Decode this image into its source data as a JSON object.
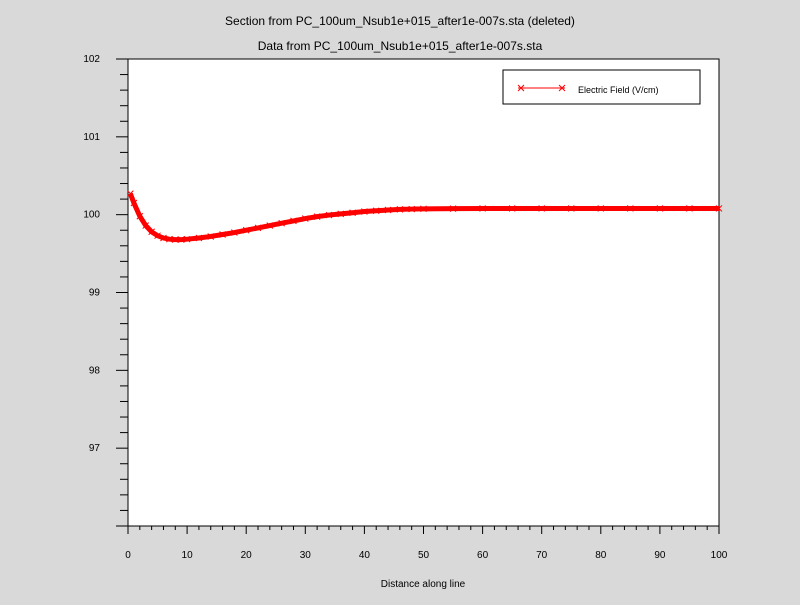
{
  "chart_data": {
    "type": "line",
    "title": "Section from PC_100um_Nsub1e+015_after1e-007s.sta (deleted)",
    "subtitle": "Data from PC_100um_Nsub1e+015_after1e-007s.sta",
    "xlabel": "Distance along line",
    "ylabel": "",
    "xlim": [
      0,
      100
    ],
    "ylim": [
      96,
      102
    ],
    "xticks": [
      0,
      10,
      20,
      30,
      40,
      50,
      60,
      70,
      80,
      90,
      100
    ],
    "yticks": [
      97,
      98,
      99,
      100,
      101,
      102
    ],
    "grid": false,
    "legend_position": "top-right",
    "series": [
      {
        "name": "Electric Field (V/cm)",
        "color": "#ff0000",
        "marker": "x",
        "x": [
          0.4,
          1,
          2,
          3,
          4,
          5,
          6,
          7,
          8,
          9,
          10,
          12,
          14,
          16,
          18,
          20,
          22,
          24,
          26,
          28,
          30,
          32,
          34,
          36,
          38,
          40,
          42,
          44,
          46,
          48,
          50,
          55,
          60,
          65,
          70,
          75,
          80,
          85,
          90,
          95,
          100
        ],
        "y": [
          100.27,
          100.15,
          99.98,
          99.86,
          99.78,
          99.73,
          99.7,
          99.685,
          99.68,
          99.68,
          99.685,
          99.7,
          99.72,
          99.745,
          99.77,
          99.8,
          99.83,
          99.86,
          99.89,
          99.92,
          99.95,
          99.975,
          99.995,
          100.01,
          100.025,
          100.04,
          100.05,
          100.06,
          100.068,
          100.072,
          100.075,
          100.078,
          100.08,
          100.08,
          100.08,
          100.08,
          100.08,
          100.08,
          100.08,
          100.08,
          100.08
        ]
      }
    ]
  }
}
